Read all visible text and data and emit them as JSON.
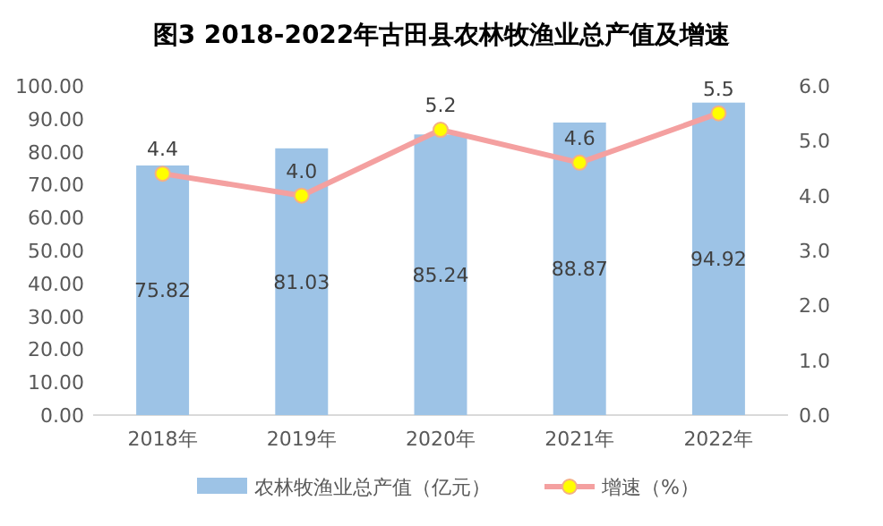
{
  "chart_data": {
    "type": "bar",
    "title": "图3 2018-2022年古田县农林牧渔业总产值及增速",
    "categories": [
      "2018年",
      "2019年",
      "2020年",
      "2021年",
      "2022年"
    ],
    "series": [
      {
        "name": "农林牧渔业总产值（亿元）",
        "color": "#9dc3e6",
        "values": [
          75.82,
          81.03,
          85.24,
          88.87,
          94.92
        ]
      },
      {
        "name": "增速（%）",
        "type": "line",
        "axis": "y2",
        "color": "#f4a0a0",
        "marker": "circle",
        "values": [
          4.4,
          4.0,
          5.2,
          4.6,
          5.5
        ],
        "value_labels": [
          "4.4",
          "4.0",
          "5.2",
          "4.6",
          "5.5"
        ]
      }
    ],
    "ylim": [
      0,
      100
    ],
    "yticks": [
      {
        "value": 0,
        "label": "0.00"
      },
      {
        "value": 10,
        "label": "10.00"
      },
      {
        "value": 20,
        "label": "20.00"
      },
      {
        "value": 30,
        "label": "30.00"
      },
      {
        "value": 40,
        "label": "40.00"
      },
      {
        "value": 50,
        "label": "50.00"
      },
      {
        "value": 60,
        "label": "60.00"
      },
      {
        "value": 70,
        "label": "70.00"
      },
      {
        "value": 80,
        "label": "80.00"
      },
      {
        "value": 90,
        "label": "90.00"
      },
      {
        "value": 100,
        "label": "100.00"
      }
    ],
    "y2lim": [
      0,
      6
    ],
    "y2ticks": [
      {
        "value": 0,
        "label": "0.0"
      },
      {
        "value": 1,
        "label": "1.0"
      },
      {
        "value": 2,
        "label": "2.0"
      },
      {
        "value": 3,
        "label": "3.0"
      },
      {
        "value": 4,
        "label": "4.0"
      },
      {
        "value": 5,
        "label": "5.0"
      },
      {
        "value": 6,
        "label": "6.0"
      }
    ],
    "data_labels": true,
    "legend": "bottom"
  }
}
